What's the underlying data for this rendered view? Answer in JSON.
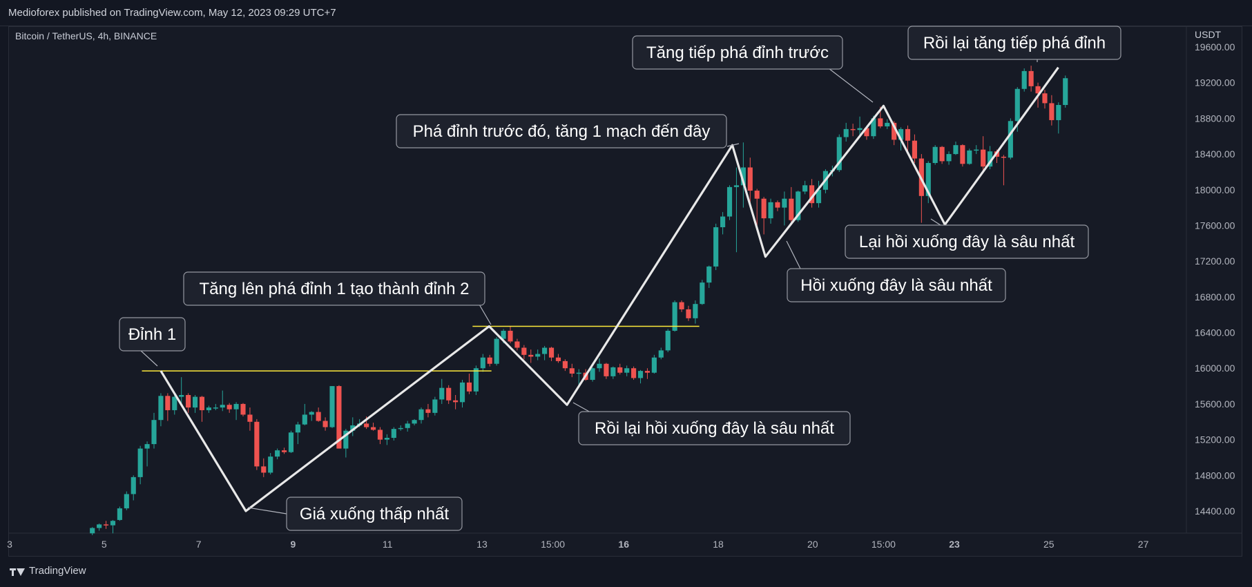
{
  "header": {
    "published": "Medioforex published on TradingView.com, May 12, 2023 09:29 UTC+7"
  },
  "chart_meta": {
    "symbol": "Bitcoin / TetherUS, 4h, BINANCE",
    "price_unit": "USDT",
    "colors": {
      "up": "#26a69a",
      "down": "#ef5350",
      "background": "#161a25",
      "annotation_bg": "#1e222d",
      "resistance": "#ffeb3b",
      "zigzag": "#e8e8e8"
    }
  },
  "footer": {
    "brand": "TradingView"
  },
  "chart_data": {
    "type": "candlestick",
    "title": "Bitcoin / TetherUS, 4h, BINANCE",
    "ylabel": "USDT",
    "ylim": [
      14150,
      19860
    ],
    "grid": false,
    "y_ticks": [
      14400,
      14800,
      15200,
      15600,
      16000,
      16400,
      16800,
      17200,
      17600,
      18000,
      18400,
      18800,
      19200,
      19600
    ],
    "x_ticks": [
      {
        "label": "3",
        "t": 0,
        "bold": false
      },
      {
        "label": "5",
        "t": 2,
        "bold": false
      },
      {
        "label": "7",
        "t": 4,
        "bold": false
      },
      {
        "label": "9",
        "t": 6,
        "bold": true
      },
      {
        "label": "11",
        "t": 8,
        "bold": false
      },
      {
        "label": "13",
        "t": 10,
        "bold": false
      },
      {
        "label": "15:00",
        "t": 11.5,
        "bold": false
      },
      {
        "label": "16",
        "t": 13,
        "bold": true
      },
      {
        "label": "18",
        "t": 15,
        "bold": false
      },
      {
        "label": "20",
        "t": 17,
        "bold": false
      },
      {
        "label": "15:00",
        "t": 18.5,
        "bold": false
      },
      {
        "label": "23",
        "t": 20,
        "bold": true
      },
      {
        "label": "25",
        "t": 22,
        "bold": false
      },
      {
        "label": "27",
        "t": 24,
        "bold": false
      }
    ],
    "candles_ohlc": [
      [
        14150,
        14220,
        14130,
        14210
      ],
      [
        14210,
        14260,
        14180,
        14250
      ],
      [
        14250,
        14290,
        14200,
        14240
      ],
      [
        14240,
        14300,
        14150,
        14290
      ],
      [
        14300,
        14450,
        14290,
        14430
      ],
      [
        14430,
        14620,
        14410,
        14590
      ],
      [
        14590,
        14800,
        14520,
        14780
      ],
      [
        14780,
        15130,
        14700,
        15100
      ],
      [
        15100,
        15180,
        14900,
        15150
      ],
      [
        15150,
        15500,
        15100,
        15420
      ],
      [
        15420,
        15720,
        15350,
        15690
      ],
      [
        15690,
        15720,
        15410,
        15530
      ],
      [
        15530,
        15720,
        15480,
        15680
      ],
      [
        15680,
        15900,
        15600,
        15700
      ],
      [
        15700,
        15720,
        15500,
        15560
      ],
      [
        15560,
        15700,
        15500,
        15680
      ],
      [
        15680,
        15690,
        15400,
        15530
      ],
      [
        15530,
        15580,
        15500,
        15560
      ],
      [
        15560,
        15600,
        15530,
        15560
      ],
      [
        15560,
        15750,
        15520,
        15590
      ],
      [
        15590,
        15610,
        15500,
        15540
      ],
      [
        15540,
        15620,
        15420,
        15600
      ],
      [
        15600,
        15610,
        15460,
        15480
      ],
      [
        15480,
        15560,
        15300,
        15400
      ],
      [
        15400,
        15430,
        14860,
        14900
      ],
      [
        14900,
        14990,
        14780,
        14830
      ],
      [
        14830,
        15050,
        14810,
        15010
      ],
      [
        15010,
        15100,
        14980,
        15080
      ],
      [
        15080,
        15110,
        15040,
        15060
      ],
      [
        15060,
        15300,
        15050,
        15280
      ],
      [
        15280,
        15400,
        15150,
        15370
      ],
      [
        15370,
        15600,
        15360,
        15480
      ],
      [
        15480,
        15520,
        15410,
        15510
      ],
      [
        15510,
        15560,
        15400,
        15410
      ],
      [
        15410,
        15450,
        15300,
        15340
      ],
      [
        15340,
        15800,
        15330,
        15800
      ],
      [
        15800,
        15810,
        15100,
        15100
      ],
      [
        15100,
        15320,
        15000,
        15300
      ],
      [
        15300,
        15450,
        15240,
        15360
      ],
      [
        15360,
        15430,
        15340,
        15380
      ],
      [
        15380,
        15460,
        15320,
        15340
      ],
      [
        15340,
        15390,
        15300,
        15310
      ],
      [
        15310,
        15340,
        15150,
        15200
      ],
      [
        15200,
        15260,
        15140,
        15220
      ],
      [
        15220,
        15340,
        15190,
        15320
      ],
      [
        15320,
        15360,
        15300,
        15330
      ],
      [
        15330,
        15410,
        15290,
        15380
      ],
      [
        15380,
        15430,
        15360,
        15420
      ],
      [
        15420,
        15560,
        15380,
        15540
      ],
      [
        15540,
        15600,
        15450,
        15500
      ],
      [
        15500,
        15680,
        15470,
        15650
      ],
      [
        15650,
        15880,
        15600,
        15780
      ],
      [
        15780,
        15810,
        15600,
        15640
      ],
      [
        15640,
        15700,
        15540,
        15620
      ],
      [
        15620,
        15870,
        15560,
        15840
      ],
      [
        15840,
        15940,
        15710,
        15740
      ],
      [
        15740,
        16030,
        15700,
        16000
      ],
      [
        16000,
        16160,
        15960,
        16120
      ],
      [
        16120,
        16150,
        16020,
        16050
      ],
      [
        16050,
        16350,
        16030,
        16330
      ],
      [
        16330,
        16440,
        16280,
        16420
      ],
      [
        16420,
        16470,
        16280,
        16300
      ],
      [
        16300,
        16330,
        16200,
        16230
      ],
      [
        16230,
        16260,
        16100,
        16150
      ],
      [
        16150,
        16210,
        16060,
        16130
      ],
      [
        16130,
        16210,
        16090,
        16160
      ],
      [
        16160,
        16250,
        16090,
        16230
      ],
      [
        16230,
        16240,
        16080,
        16120
      ],
      [
        16120,
        16160,
        16060,
        16080
      ],
      [
        16080,
        16100,
        15970,
        16000
      ],
      [
        16000,
        16050,
        15900,
        15940
      ],
      [
        15940,
        15990,
        15780,
        15950
      ],
      [
        15950,
        15990,
        15860,
        15870
      ],
      [
        15870,
        16010,
        15850,
        16000
      ],
      [
        16000,
        16110,
        15960,
        16050
      ],
      [
        16050,
        16060,
        15880,
        15910
      ],
      [
        15910,
        16020,
        15880,
        16010
      ],
      [
        16010,
        16050,
        15930,
        15950
      ],
      [
        15950,
        16030,
        15910,
        16000
      ],
      [
        16000,
        16020,
        15870,
        15890
      ],
      [
        15890,
        15980,
        15830,
        15970
      ],
      [
        15970,
        16000,
        15880,
        15950
      ],
      [
        15950,
        16150,
        15940,
        16120
      ],
      [
        16120,
        16230,
        16100,
        16200
      ],
      [
        16200,
        16440,
        16180,
        16420
      ],
      [
        16420,
        16760,
        16410,
        16740
      ],
      [
        16740,
        16760,
        16630,
        16660
      ],
      [
        16660,
        16700,
        16530,
        16560
      ],
      [
        16560,
        16760,
        16500,
        16720
      ],
      [
        16720,
        16990,
        16710,
        16960
      ],
      [
        16960,
        17150,
        16900,
        17140
      ],
      [
        17140,
        17620,
        17100,
        17580
      ],
      [
        17580,
        17750,
        17500,
        17700
      ],
      [
        17700,
        18050,
        17660,
        18030
      ],
      [
        18030,
        18250,
        17300,
        18050
      ],
      [
        18050,
        18530,
        17800,
        18250
      ],
      [
        18250,
        18360,
        17800,
        17990
      ],
      [
        17990,
        18010,
        17600,
        17900
      ],
      [
        17900,
        17920,
        17500,
        17680
      ],
      [
        17680,
        17900,
        17620,
        17860
      ],
      [
        17860,
        17880,
        17760,
        17800
      ],
      [
        17800,
        17980,
        17600,
        17900
      ],
      [
        17900,
        18030,
        17620,
        17660
      ],
      [
        17660,
        17990,
        17640,
        17980
      ],
      [
        17980,
        18100,
        17950,
        18050
      ],
      [
        18050,
        18120,
        17800,
        17850
      ],
      [
        17850,
        18100,
        17800,
        18000
      ],
      [
        18000,
        18230,
        17960,
        18210
      ],
      [
        18210,
        18270,
        18150,
        18220
      ],
      [
        18220,
        18620,
        18200,
        18590
      ],
      [
        18590,
        18750,
        18540,
        18680
      ],
      [
        18680,
        18740,
        18600,
        18670
      ],
      [
        18670,
        18820,
        18600,
        18690
      ],
      [
        18690,
        18700,
        18560,
        18600
      ],
      [
        18600,
        18830,
        18570,
        18800
      ],
      [
        18800,
        18930,
        18690,
        18710
      ],
      [
        18710,
        18790,
        18680,
        18750
      ],
      [
        18750,
        18770,
        18500,
        18560
      ],
      [
        18560,
        18700,
        18440,
        18680
      ],
      [
        18680,
        18720,
        18400,
        18550
      ],
      [
        18550,
        18620,
        18300,
        18350
      ],
      [
        18350,
        18400,
        17630,
        17930
      ],
      [
        17930,
        18320,
        17850,
        18300
      ],
      [
        18300,
        18500,
        18280,
        18480
      ],
      [
        18480,
        18490,
        18290,
        18320
      ],
      [
        18320,
        18430,
        18280,
        18400
      ],
      [
        18400,
        18540,
        18390,
        18500
      ],
      [
        18500,
        18510,
        18260,
        18290
      ],
      [
        18290,
        18460,
        18280,
        18440
      ],
      [
        18440,
        18500,
        18400,
        18450
      ],
      [
        18450,
        18600,
        18200,
        18260
      ],
      [
        18260,
        18490,
        18230,
        18430
      ],
      [
        18430,
        18450,
        18300,
        18370
      ],
      [
        18370,
        18390,
        18050,
        18360
      ],
      [
        18360,
        18800,
        18340,
        18770
      ],
      [
        18770,
        19150,
        18650,
        19130
      ],
      [
        19130,
        19360,
        19100,
        19330
      ],
      [
        19330,
        19390,
        19100,
        19160
      ],
      [
        19160,
        19200,
        18920,
        19080
      ],
      [
        19080,
        19120,
        18910,
        18970
      ],
      [
        18970,
        19060,
        18720,
        18780
      ],
      [
        18780,
        18980,
        18630,
        18950
      ],
      [
        18950,
        19280,
        18920,
        19250
      ]
    ],
    "resistance_lines": [
      {
        "name": "dinh_1_level",
        "price": 15970,
        "t_start": 2.8,
        "t_end": 10.2
      },
      {
        "name": "dinh_2_level",
        "price": 16470,
        "t_start": 9.8,
        "t_end": 14.6
      }
    ],
    "zigzag": [
      {
        "t": 3.2,
        "p": 15970
      },
      {
        "t": 5.0,
        "p": 14400
      },
      {
        "t": 10.15,
        "p": 16470
      },
      {
        "t": 11.8,
        "p": 15590
      },
      {
        "t": 15.3,
        "p": 18500
      },
      {
        "t": 16.0,
        "p": 17250
      },
      {
        "t": 18.5,
        "p": 18940
      },
      {
        "t": 19.8,
        "p": 17610
      },
      {
        "t": 22.2,
        "p": 19370
      }
    ],
    "annotations": [
      {
        "text": "Đỉnh 1",
        "anchor_t": 3.2,
        "anchor_p": 15970
      },
      {
        "text": "Giá xuống thấp nhất",
        "anchor_t": 5.0,
        "anchor_p": 14400
      },
      {
        "text": "Tăng lên phá đỉnh 1 tạo thành đỉnh 2",
        "anchor_t": 10.15,
        "anchor_p": 16470
      },
      {
        "text": "Rồi lại hồi xuống đây là sâu nhất",
        "anchor_t": 11.8,
        "anchor_p": 15590
      },
      {
        "text": "Phá đỉnh trước đó, tăng 1 mạch đến đây",
        "anchor_t": 15.3,
        "anchor_p": 18500
      },
      {
        "text": "Hồi xuống đây là sâu nhất",
        "anchor_t": 16.4,
        "anchor_p": 17490
      },
      {
        "text": "Tăng tiếp phá đỉnh trước",
        "anchor_t": 18.5,
        "anchor_p": 18940
      },
      {
        "text": "Lại hồi xuống đây là sâu nhất",
        "anchor_t": 19.8,
        "anchor_p": 17610
      },
      {
        "text": "Rồi lại tăng tiếp phá đỉnh",
        "anchor_t": 22.2,
        "anchor_p": 19370
      }
    ]
  }
}
